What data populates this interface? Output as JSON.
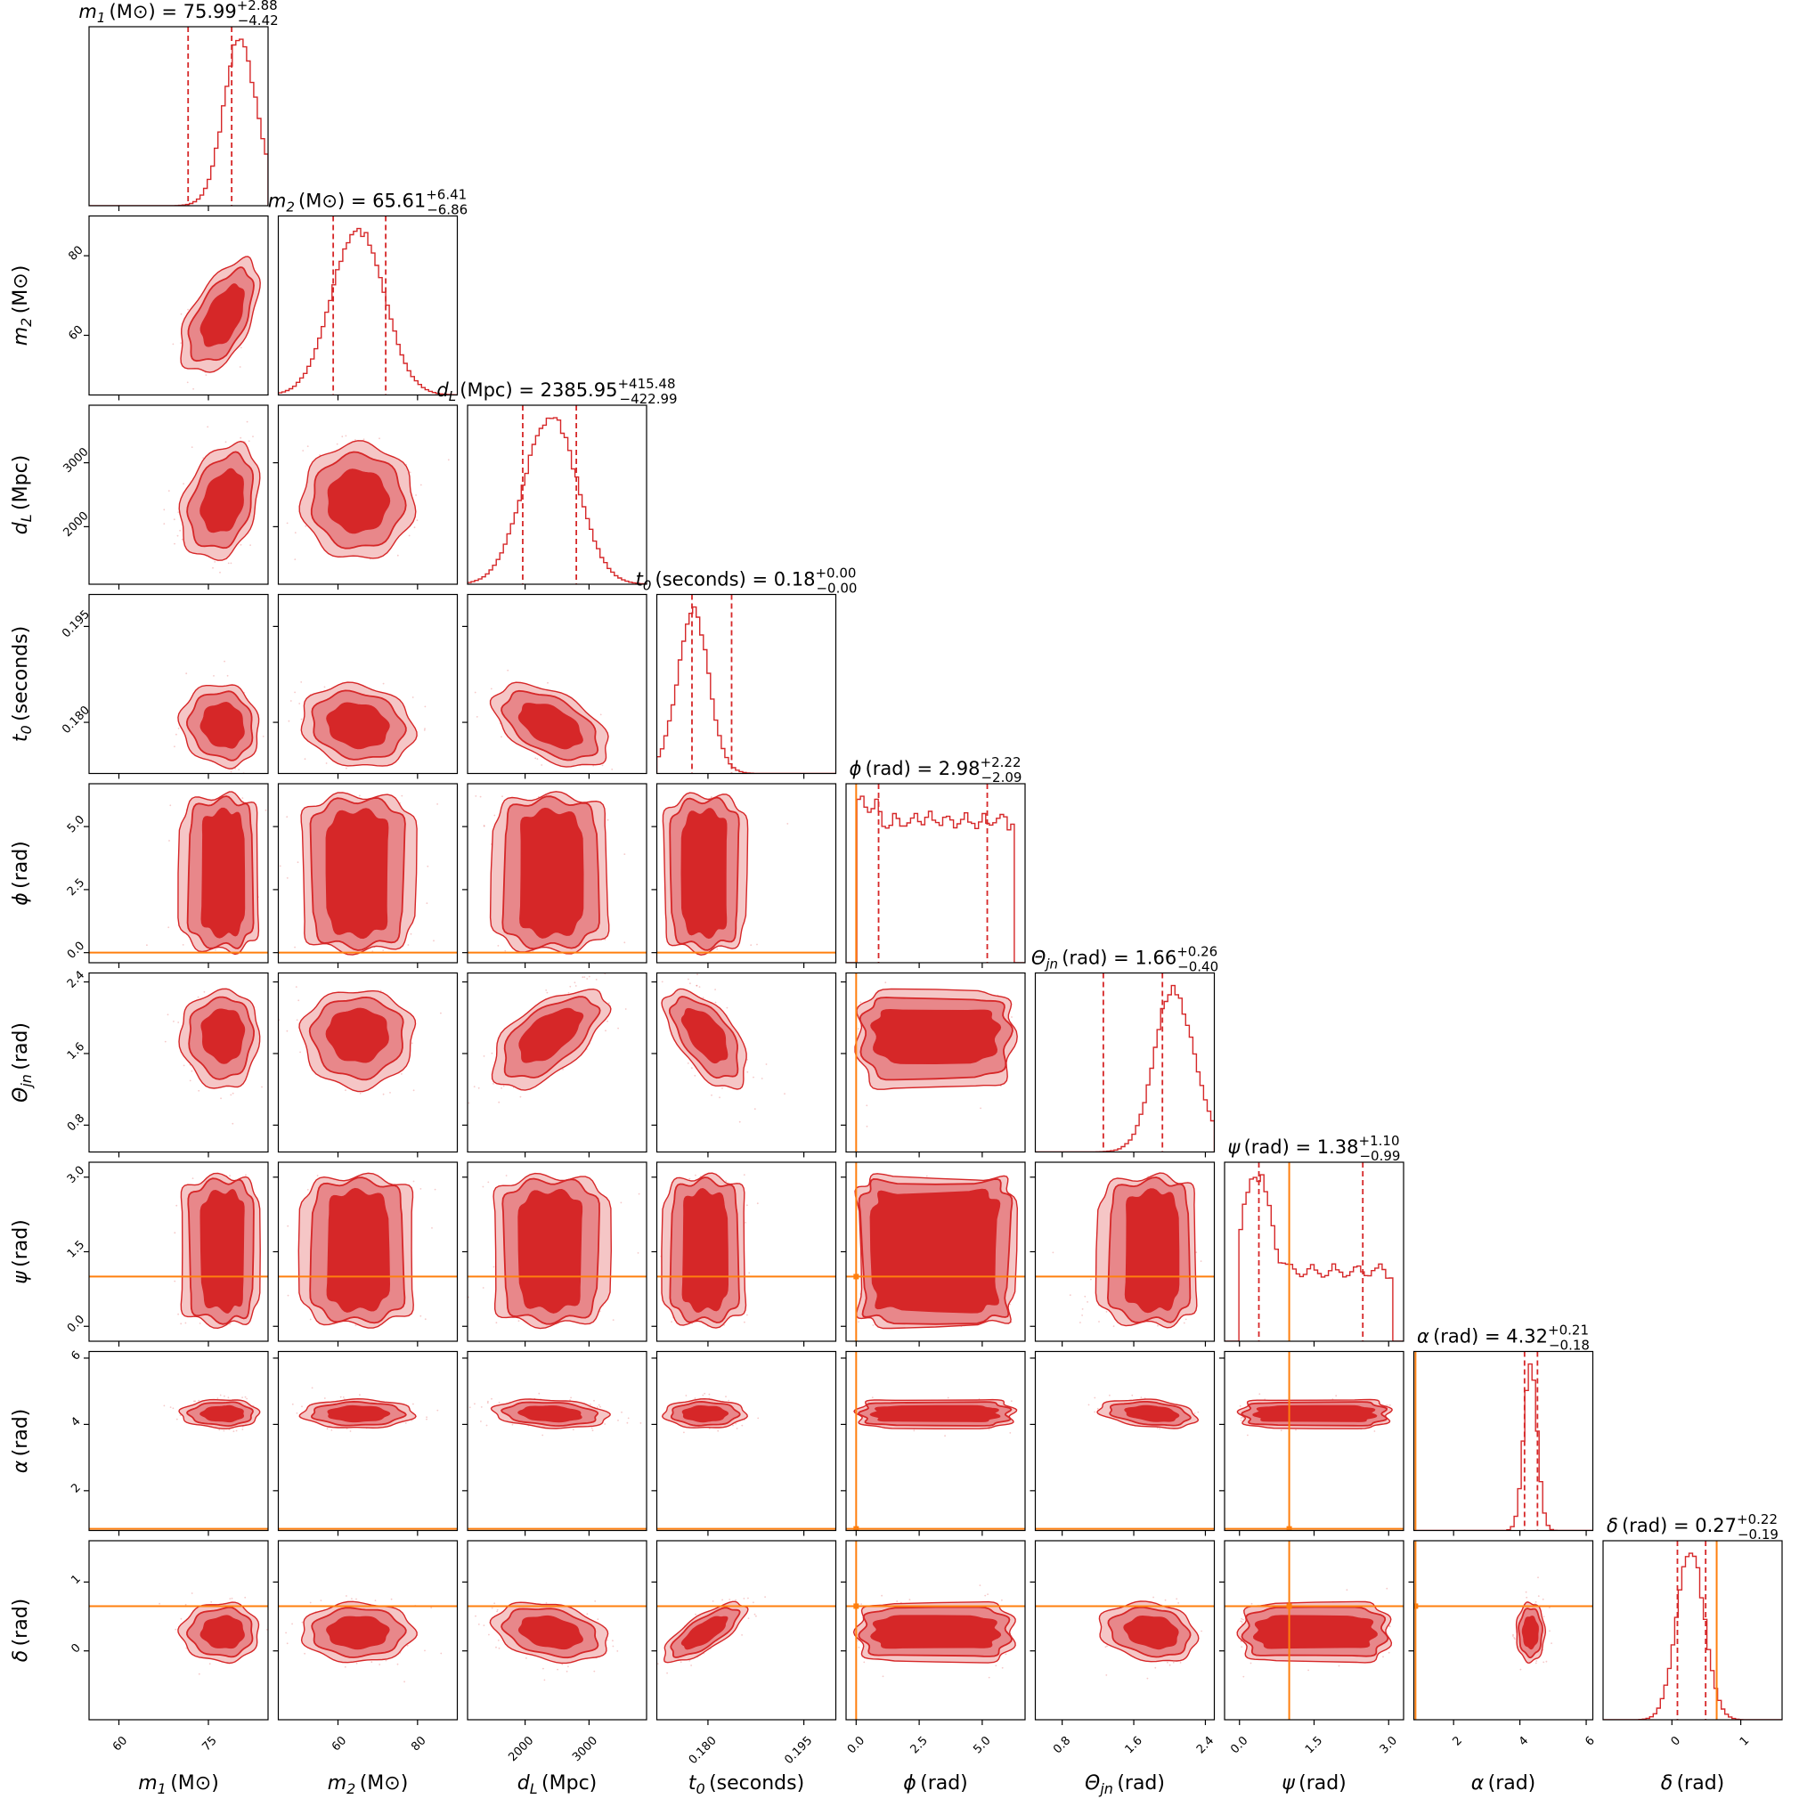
{
  "chart_data": {
    "type": "corner",
    "series": [
      {
        "name": "posterior",
        "color": "#d62728"
      }
    ],
    "truth_color": "#ff7f0e",
    "parameters": [
      {
        "id": "m1",
        "label_sym": "m",
        "label_sub": "1",
        "label_unit": "(M⊙)",
        "median": "75.99",
        "plus": "2.88",
        "minus": "4.42",
        "range": [
          55,
          85
        ],
        "ticks": [
          60,
          75
        ],
        "tick_labels": [
          "60",
          "75"
        ],
        "q_lo": 71.6,
        "q_hi": 78.9,
        "mode": 78,
        "sigma": 3.6,
        "skew": -0.6,
        "truth": null
      },
      {
        "id": "m2",
        "label_sym": "m",
        "label_sub": "2",
        "label_unit": "(M⊙)",
        "median": "65.61",
        "plus": "6.41",
        "minus": "6.86",
        "range": [
          45,
          90
        ],
        "ticks": [
          60,
          80
        ],
        "tick_labels": [
          "60",
          "80"
        ],
        "q_lo": 58.8,
        "q_hi": 72.0,
        "mode": 65,
        "sigma": 6.6,
        "skew": 0,
        "truth": null
      },
      {
        "id": "dL",
        "label_sym": "d",
        "label_sub": "L",
        "label_unit": "(Mpc)",
        "median": "2385.95",
        "plus": "415.48",
        "minus": "422.99",
        "range": [
          1100,
          3900
        ],
        "ticks": [
          2000,
          3000
        ],
        "tick_labels": [
          "2000",
          "3000"
        ],
        "q_lo": 1963,
        "q_hi": 2801,
        "mode": 2400,
        "sigma": 420,
        "skew": 0,
        "truth": null
      },
      {
        "id": "t0",
        "label_sym": "t",
        "label_sub": "0",
        "label_unit": "(seconds)",
        "median": "0.18",
        "plus": "0.00",
        "minus": "0.00",
        "range": [
          0.172,
          0.2
        ],
        "ticks": [
          0.18,
          0.195
        ],
        "tick_labels": [
          "0.180",
          "0.195"
        ],
        "q_lo": 0.1775,
        "q_hi": 0.1837,
        "mode": 0.1795,
        "sigma": 0.003,
        "skew": 0.5,
        "truth": null
      },
      {
        "id": "phi",
        "label_sym": "ϕ",
        "label_sub": "",
        "label_unit": "(rad)",
        "median": "2.98",
        "plus": "2.22",
        "minus": "2.09",
        "range": [
          -0.4,
          6.7
        ],
        "ticks": [
          0,
          2.5,
          5
        ],
        "tick_labels": [
          "0.0",
          "2.5",
          "5.0"
        ],
        "q_lo": 0.89,
        "q_hi": 5.2,
        "mode": 3.14,
        "sigma": 0,
        "skew": 0,
        "truth": 0.0
      },
      {
        "id": "theta",
        "label_sym": "Θ",
        "label_sub": "jn",
        "label_unit": "(rad)",
        "median": "1.66",
        "plus": "0.26",
        "minus": "0.40",
        "range": [
          0.5,
          2.5
        ],
        "ticks": [
          0.8,
          1.6,
          2.4
        ],
        "tick_labels": [
          "0.8",
          "1.6",
          "2.4"
        ],
        "q_lo": 1.26,
        "q_hi": 1.92,
        "mode": 1.85,
        "sigma": 0.3,
        "skew": -0.7,
        "truth": null
      },
      {
        "id": "psi",
        "label_sym": "ψ",
        "label_sub": "",
        "label_unit": "(rad)",
        "median": "1.38",
        "plus": "1.10",
        "minus": "0.99",
        "range": [
          -0.3,
          3.3
        ],
        "ticks": [
          0,
          1.5,
          3
        ],
        "tick_labels": [
          "0.0",
          "1.5",
          "3.0"
        ],
        "q_lo": 0.39,
        "q_hi": 2.48,
        "mode": 0.5,
        "sigma": 0,
        "skew": 0,
        "truth": 1.0
      },
      {
        "id": "alpha",
        "label_sym": "α",
        "label_sub": "",
        "label_unit": "(rad)",
        "median": "4.32",
        "plus": "0.21",
        "minus": "0.18",
        "range": [
          0.8,
          6.2
        ],
        "ticks": [
          2,
          4,
          6
        ],
        "tick_labels": [
          "2",
          "4",
          "6"
        ],
        "q_lo": 4.14,
        "q_hi": 4.53,
        "mode": 4.32,
        "sigma": 0.2,
        "skew": 0,
        "truth": 0.85
      },
      {
        "id": "delta",
        "label_sym": "δ",
        "label_sub": "",
        "label_unit": "(rad)",
        "median": "0.27",
        "plus": "0.22",
        "minus": "0.19",
        "range": [
          -1.0,
          1.6
        ],
        "ticks": [
          0,
          1
        ],
        "tick_labels": [
          "0",
          "1"
        ],
        "q_lo": 0.08,
        "q_hi": 0.49,
        "mode": 0.27,
        "sigma": 0.2,
        "skew": 0,
        "truth": 0.65
      }
    ],
    "correlations": {
      "m1-m2": 0.55,
      "m1-dL": 0.3,
      "m2-dL": 0.0,
      "m1-t0": -0.1,
      "m2-t0": -0.15,
      "dL-t0": -0.5,
      "dL-theta": 0.6,
      "t0-theta": -0.6,
      "t0-delta": 0.75,
      "dL-delta": -0.3,
      "theta-alpha": -0.3,
      "theta-delta": -0.2,
      "dL-alpha": -0.2
    }
  }
}
